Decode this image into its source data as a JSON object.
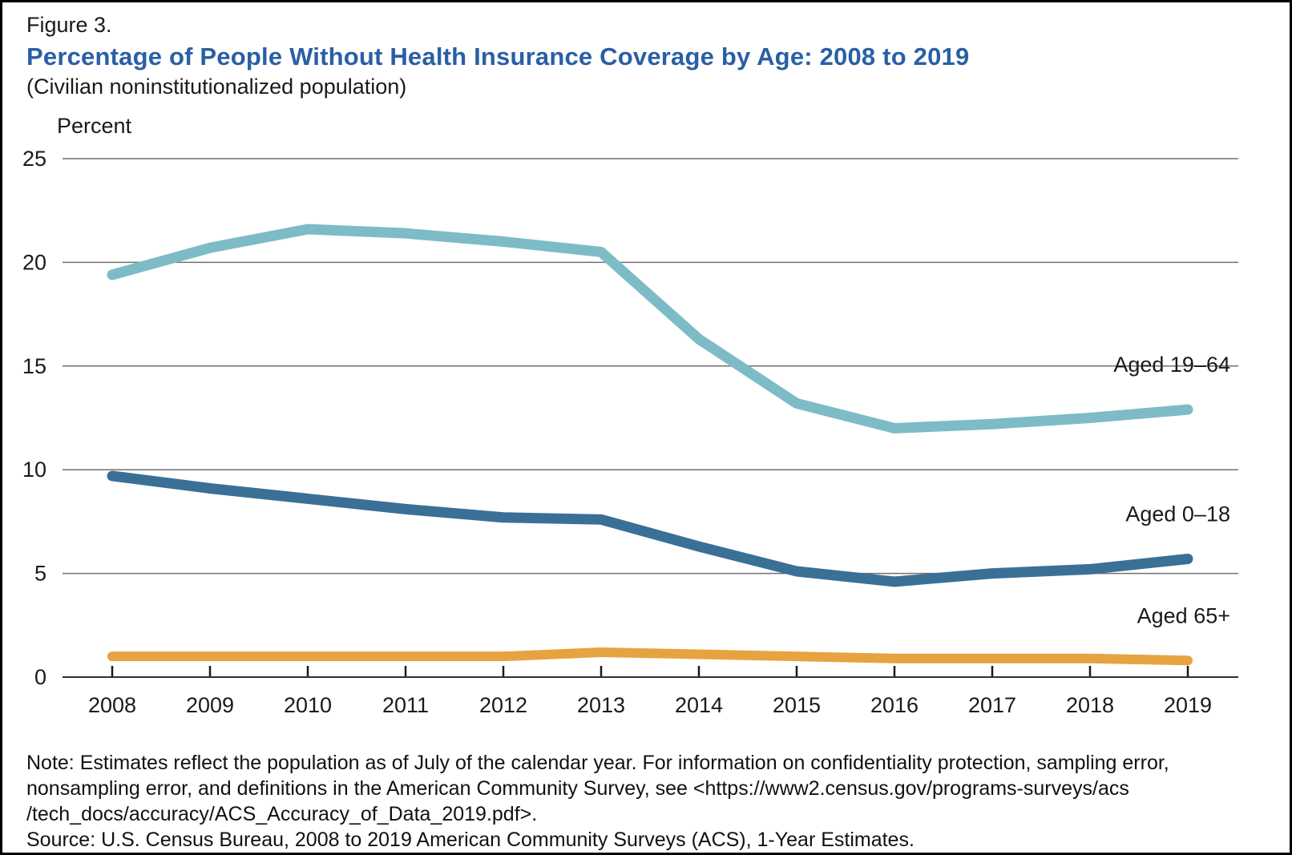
{
  "header": {
    "figure_label": "Figure 3.",
    "title": "Percentage of People Without Health Insurance Coverage by Age: 2008 to 2019",
    "subtitle": "(Civilian noninstitutionalized population)"
  },
  "notes": [
    "Note: Estimates reflect the population as of July of the calendar year. For information on confidentiality protection, sampling error,",
    "nonsampling error, and definitions in the American Community Survey, see <https://www2.census.gov/programs-surveys/acs",
    "/tech_docs/accuracy/ACS_Accuracy_of_Data_2019.pdf>.",
    "Source: U.S. Census Bureau, 2008 to 2019 American Community Surveys (ACS), 1-Year Estimates."
  ],
  "colors": {
    "title_blue": "#2a5fa4",
    "gridline_gray": "#707070",
    "axis_dark": "#2f2f2f",
    "tick_black": "#1a1a1a",
    "text_black": "#1a1a1a"
  },
  "chart_data": {
    "type": "line",
    "title": "Percentage of People Without Health Insurance Coverage by Age: 2008 to 2019",
    "subtitle": "(Civilian noninstitutionalized population)",
    "ylabel": "Percent",
    "xlabel": "",
    "x": [
      "2008",
      "2009",
      "2010",
      "2011",
      "2012",
      "2013",
      "2014",
      "2015",
      "2016",
      "2017",
      "2018",
      "2019"
    ],
    "ylim": [
      0,
      25
    ],
    "yticks": [
      0,
      5,
      10,
      15,
      20,
      25
    ],
    "grid": "horizontal",
    "legend_position": "right-end-labels",
    "series": [
      {
        "name": "Aged 19–64",
        "color": "#7dbbc7",
        "stroke_width": 13,
        "values": [
          19.4,
          20.7,
          21.6,
          21.4,
          21.0,
          20.5,
          16.3,
          13.2,
          12.0,
          12.2,
          12.5,
          12.9
        ]
      },
      {
        "name": "Aged 0–18",
        "color": "#3a7096",
        "stroke_width": 13,
        "values": [
          9.7,
          9.1,
          8.6,
          8.1,
          7.7,
          7.6,
          6.3,
          5.1,
          4.6,
          5.0,
          5.2,
          5.7
        ]
      },
      {
        "name": "Aged 65+",
        "color": "#e6a33f",
        "stroke_width": 12,
        "values": [
          1.0,
          1.0,
          1.0,
          1.0,
          1.0,
          1.2,
          1.1,
          1.0,
          0.9,
          0.9,
          0.9,
          0.8
        ]
      }
    ]
  }
}
